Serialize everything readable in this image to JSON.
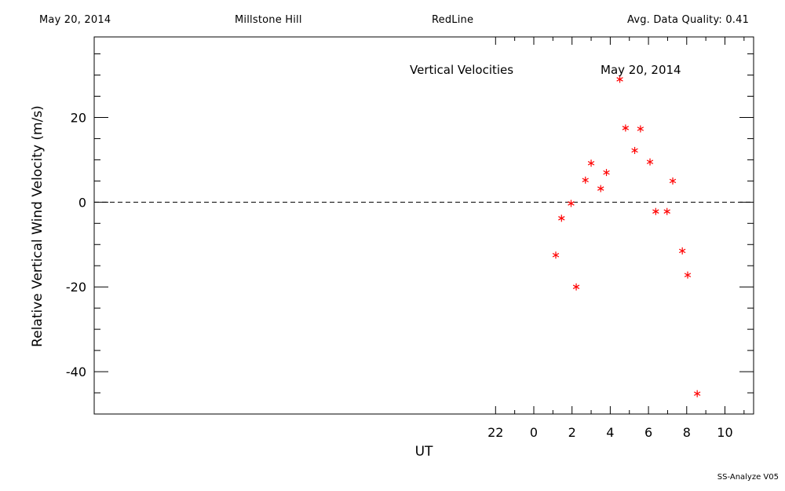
{
  "header": {
    "date": "May 20, 2014",
    "site": "Millstone Hill",
    "instrument": "RedLine",
    "quality": "Avg. Data Quality: 0.41"
  },
  "footer": "SS-Analyze V05",
  "chart_data": {
    "type": "scatter",
    "title": "Vertical Velocities",
    "subtitle": "May 20, 2014",
    "xlabel": "UT",
    "ylabel": "Relative Vertical Wind Velocity (m/s)",
    "xlim": [
      -23,
      11.5
    ],
    "ylim": [
      -50,
      39
    ],
    "xticks": [
      22,
      0,
      2,
      4,
      6,
      8,
      10
    ],
    "xtick_values": [
      -2,
      0,
      2,
      4,
      6,
      8,
      10
    ],
    "yticks": [
      -40,
      -20,
      0,
      20
    ],
    "marker": "*",
    "marker_color": "#ff0000",
    "zero_line": "dashed",
    "series": [
      {
        "x": [
          1.15,
          1.45,
          1.95,
          2.22,
          2.7,
          3.0,
          3.5,
          3.8,
          4.5,
          4.8,
          5.28,
          5.58,
          6.08,
          6.38,
          6.97,
          7.27,
          7.77,
          8.05,
          8.55
        ],
        "y": [
          -12.5,
          -3.8,
          -0.3,
          -20.0,
          5.2,
          9.2,
          3.2,
          7.0,
          29.0,
          17.5,
          12.2,
          17.3,
          9.5,
          -2.2,
          -2.2,
          5.0,
          -11.5,
          -17.2,
          -45.2
        ]
      }
    ]
  }
}
